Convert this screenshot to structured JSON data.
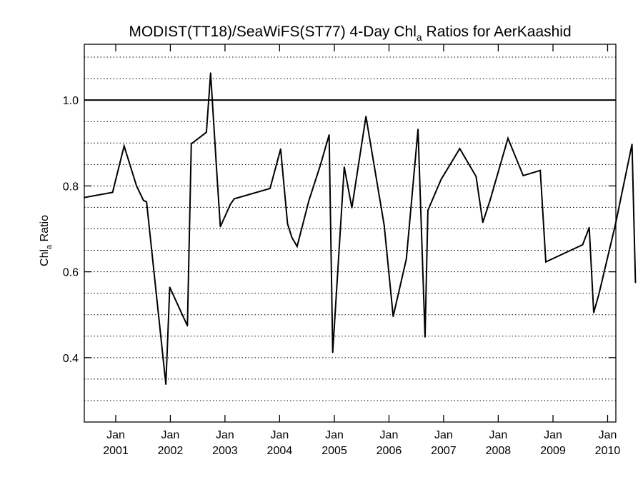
{
  "chart_data": {
    "type": "line",
    "title": {
      "main": "MODIST(TT18)/SeaWiFS(ST77) 4-Day Chl",
      "sub": "a",
      "rest": " Ratios for AerKaashid"
    },
    "ylabel": {
      "main": "Chl",
      "sub": "a",
      "rest": " Ratio"
    },
    "xlabel": "",
    "ylim": [
      0.25,
      1.13
    ],
    "xlim": [
      "2000-06-05",
      "2010-02-25"
    ],
    "yticks": [
      0.4,
      0.6,
      0.8,
      1.0
    ],
    "yticklabels": [
      "0.4",
      "0.6",
      "0.8",
      "1.0"
    ],
    "xticks": [
      "2001-01-01",
      "2002-01-01",
      "2003-01-01",
      "2004-01-01",
      "2005-01-01",
      "2006-01-01",
      "2007-01-01",
      "2008-01-01",
      "2009-01-01",
      "2010-01-01"
    ],
    "xticklabels": [
      [
        "Jan",
        "2001"
      ],
      [
        "Jan",
        "2002"
      ],
      [
        "Jan",
        "2003"
      ],
      [
        "Jan",
        "2004"
      ],
      [
        "Jan",
        "2005"
      ],
      [
        "Jan",
        "2006"
      ],
      [
        "Jan",
        "2007"
      ],
      [
        "Jan",
        "2008"
      ],
      [
        "Jan",
        "2009"
      ],
      [
        "Jan",
        "2010"
      ]
    ],
    "grid": {
      "y": true,
      "style": "dotted",
      "step": 0.05
    },
    "reference_line": 1.0,
    "series": [
      {
        "points": [
          [
            "2000-06-05",
            0.773
          ],
          [
            "2000-12-11",
            0.785
          ],
          [
            "2001-02-26",
            0.893
          ],
          [
            "2001-05-20",
            0.8
          ],
          [
            "2001-07-06",
            0.766
          ],
          [
            "2001-07-26",
            0.763
          ],
          [
            "2001-12-02",
            0.338
          ],
          [
            "2001-12-28",
            0.564
          ],
          [
            "2002-04-25",
            0.474
          ],
          [
            "2002-05-21",
            0.898
          ],
          [
            "2002-08-30",
            0.925
          ],
          [
            "2002-09-27",
            1.063
          ],
          [
            "2002-11-07",
            0.833
          ],
          [
            "2002-12-01",
            0.705
          ],
          [
            "2003-02-06",
            0.757
          ],
          [
            "2003-03-04",
            0.77
          ],
          [
            "2003-10-29",
            0.794
          ],
          [
            "2004-01-08",
            0.886
          ],
          [
            "2004-02-23",
            0.712
          ],
          [
            "2004-03-23",
            0.68
          ],
          [
            "2004-04-27",
            0.659
          ],
          [
            "2004-07-15",
            0.766
          ],
          [
            "2004-09-30",
            0.849
          ],
          [
            "2004-11-27",
            0.919
          ],
          [
            "2004-12-21",
            0.412
          ],
          [
            "2005-03-08",
            0.844
          ],
          [
            "2005-04-28",
            0.749
          ],
          [
            "2005-07-31",
            0.962
          ],
          [
            "2005-11-30",
            0.708
          ],
          [
            "2006-01-29",
            0.496
          ],
          [
            "2006-04-27",
            0.63
          ],
          [
            "2006-07-14",
            0.932
          ],
          [
            "2006-08-30",
            0.448
          ],
          [
            "2006-09-18",
            0.743
          ],
          [
            "2006-12-15",
            0.815
          ],
          [
            "2007-04-19",
            0.887
          ],
          [
            "2007-08-06",
            0.822
          ],
          [
            "2007-09-20",
            0.715
          ],
          [
            "2007-11-07",
            0.766
          ],
          [
            "2008-03-06",
            0.911
          ],
          [
            "2008-06-16",
            0.824
          ],
          [
            "2008-10-08",
            0.836
          ],
          [
            "2008-11-14",
            0.623
          ],
          [
            "2009-07-18",
            0.663
          ],
          [
            "2009-08-31",
            0.703
          ],
          [
            "2009-09-30",
            0.505
          ],
          [
            "2009-11-03",
            0.547
          ],
          [
            "2010-02-22",
            0.71
          ],
          [
            "2010-06-13",
            0.897
          ],
          [
            "2010-07-06",
            0.575
          ]
        ]
      }
    ]
  }
}
